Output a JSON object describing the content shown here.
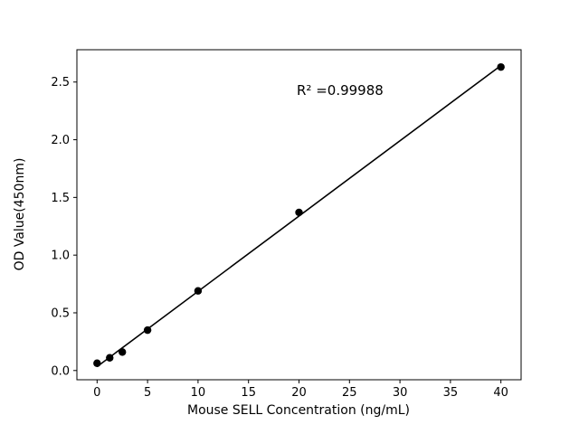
{
  "chart_data": {
    "type": "scatter",
    "title": "",
    "xlabel": "Mouse SELL Concentration (ng/mL)",
    "ylabel": "OD Value(450nm)",
    "annotation": "R² =0.99988",
    "x": [
      0,
      1.25,
      2.5,
      5,
      10,
      20,
      40
    ],
    "y": [
      0.063,
      0.11,
      0.16,
      0.35,
      0.69,
      1.37,
      2.63
    ],
    "xlim": [
      -2,
      42
    ],
    "ylim": [
      -0.08,
      2.78
    ],
    "x_ticks": [
      0,
      5,
      10,
      15,
      20,
      25,
      30,
      35,
      40
    ],
    "y_ticks": [
      0.0,
      0.5,
      1.0,
      1.5,
      2.0,
      2.5
    ],
    "grid": false,
    "legend": "none",
    "marker_color": "#000000",
    "line_color": "#000000",
    "background_color": "#ffffff",
    "fit_line": true
  }
}
